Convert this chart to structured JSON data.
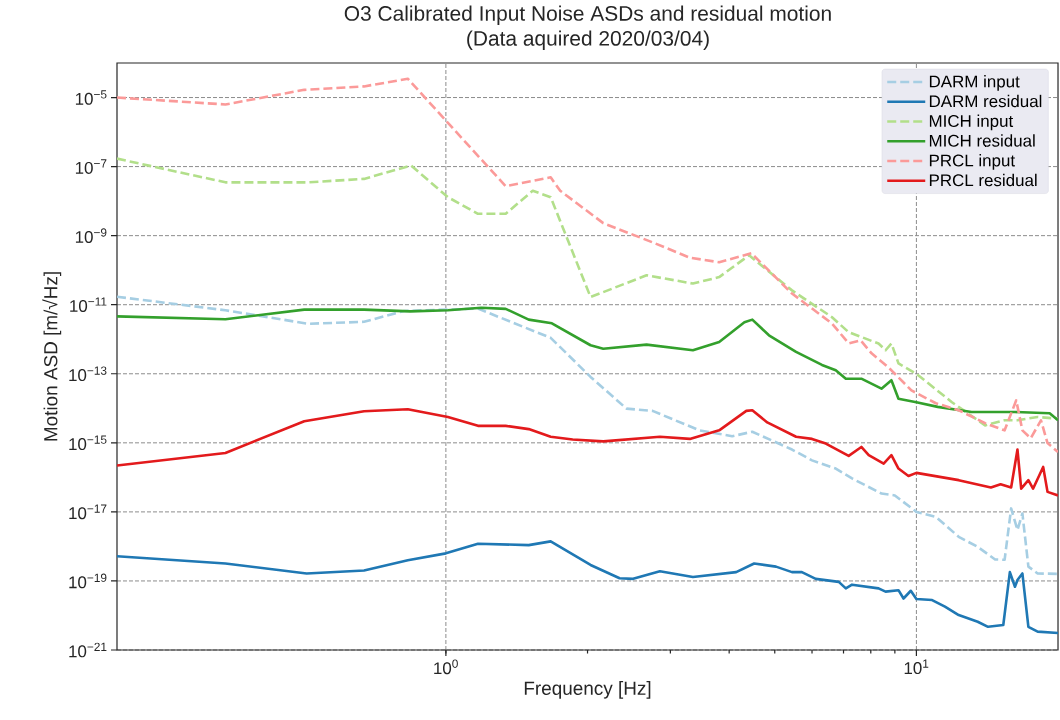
{
  "chart_data": {
    "type": "line",
    "title": "O3 Calibrated Input Noise ASDs and residual motion",
    "subtitle": "(Data aquired 2020/03/04)",
    "xlabel": "Frequency [Hz]",
    "ylabel": "Motion ASD [m/√Hz]",
    "log": "xy",
    "grid": true,
    "legend": "top right",
    "xlim": [
      0.2,
      20
    ],
    "ylim": [
      1e-21,
      0.0001
    ],
    "xticks": [
      {
        "value": 1,
        "label": "10$^{0}$"
      },
      {
        "value": 10,
        "label": "10$^{1}$"
      }
    ],
    "yticks": [
      {
        "value": 1e-21,
        "label": "10$^{−21}$"
      },
      {
        "value": 1e-19,
        "label": "10$^{−19}$"
      },
      {
        "value": 1e-17,
        "label": "10$^{−17}$"
      },
      {
        "value": 1e-15,
        "label": "10$^{−15}$"
      },
      {
        "value": 1e-13,
        "label": "10$^{−13}$"
      },
      {
        "value": 1e-11,
        "label": "10$^{−11}$"
      },
      {
        "value": 1e-09,
        "label": "10$^{−9}$"
      },
      {
        "value": 1e-07,
        "label": "10$^{−7}$"
      },
      {
        "value": 1e-05,
        "label": "10$^{−5}$"
      }
    ],
    "series": [
      {
        "name": "DARM input",
        "color": "#a6cee3",
        "line_style": "dashed",
        "x": [
          0.2,
          0.34,
          0.51,
          0.67,
          0.815,
          1.17,
          1.67,
          2.03,
          2.42,
          2.75,
          3.46,
          4.06,
          4.48,
          5.44,
          6.0,
          6.74,
          7.3,
          8.43,
          9.0,
          10,
          11.0,
          12.3,
          13.5,
          14.7,
          15.4,
          15.9,
          16.4,
          16.8,
          17.3,
          18.1,
          20
        ],
        "values": [
          1.7e-11,
          6.9e-12,
          2.8e-12,
          3.2e-12,
          6.6e-12,
          7.7e-12,
          1.1e-12,
          8.1e-14,
          9.8e-15,
          8.4e-15,
          2.3e-15,
          1.55e-15,
          2.1e-15,
          6.4e-16,
          3.1e-16,
          1.8e-16,
          9.3e-17,
          3.4e-17,
          3e-17,
          1e-17,
          7.2e-18,
          1.9e-18,
          9.7e-19,
          4.2e-19,
          4.1e-19,
          1.26e-17,
          3e-18,
          9e-18,
          2.6e-19,
          1.65e-19,
          1.6e-19
        ]
      },
      {
        "name": "DARM residual",
        "color": "#1f78b4",
        "line_style": "solid",
        "x": [
          0.2,
          0.34,
          0.506,
          0.67,
          0.83,
          1.0,
          1.17,
          1.5,
          1.67,
          2.03,
          2.34,
          2.5,
          2.85,
          3.35,
          4.14,
          4.52,
          5.03,
          5.44,
          5.71,
          6.11,
          6.84,
          7.08,
          7.3,
          8.31,
          8.6,
          9.16,
          9.39,
          9.73,
          10,
          10.8,
          11.5,
          12.3,
          13.5,
          14.2,
          15.3,
          15.8,
          16.2,
          16.4,
          16.8,
          17.3,
          18.1,
          20
        ],
        "values": [
          5.2e-19,
          3.2e-19,
          1.65e-19,
          2e-19,
          4e-19,
          6.3e-19,
          1.2e-18,
          1.09e-18,
          1.4e-18,
          2.9e-19,
          1.2e-19,
          1.15e-19,
          1.9e-19,
          1.3e-19,
          1.8e-19,
          3.2e-19,
          2.6e-19,
          1.8e-19,
          1.8e-19,
          1.15e-19,
          9.4e-20,
          6.1e-20,
          7.8e-20,
          6.1e-20,
          4.9e-20,
          5.4e-20,
          3.1e-20,
          5.2e-20,
          3e-20,
          2.8e-20,
          1.8e-20,
          1.03e-20,
          6.6e-21,
          4.7e-21,
          5.3e-21,
          1.8e-19,
          6.8e-20,
          1.06e-19,
          1.65e-19,
          4.7e-21,
          3.4e-21,
          3.1e-21
        ]
      },
      {
        "name": "MICH input",
        "color": "#b2df8a",
        "line_style": "dashed",
        "x": [
          0.2,
          0.34,
          0.51,
          0.67,
          0.843,
          1.01,
          1.17,
          1.34,
          1.53,
          1.67,
          2.03,
          2.67,
          3.35,
          3.81,
          4.41,
          5.44,
          6.61,
          7.18,
          8.31,
          8.6,
          8.85,
          9.16,
          10,
          11.9,
          14.0,
          15.4,
          16.4,
          18.1,
          20
        ],
        "values": [
          1.7e-07,
          3.5e-08,
          3.5e-08,
          4.4e-08,
          1.08e-07,
          1.3e-08,
          4.3e-09,
          4.3e-09,
          2e-08,
          1.3e-08,
          1.67e-11,
          7.1e-11,
          4.1e-11,
          6.3e-11,
          2.7e-10,
          2.6e-11,
          4.4e-12,
          1.6e-12,
          7.5e-13,
          4.8e-13,
          7.5e-13,
          2e-13,
          1e-13,
          1.5e-14,
          3.2e-15,
          4.5e-15,
          4.5e-15,
          5.6e-15,
          5e-15
        ]
      },
      {
        "name": "MICH residual",
        "color": "#33a02c",
        "line_style": "solid",
        "x": [
          0.2,
          0.34,
          0.5,
          0.67,
          0.84,
          1.01,
          1.19,
          1.34,
          1.5,
          1.68,
          2.03,
          2.16,
          2.67,
          3.35,
          3.81,
          4.31,
          4.48,
          4.86,
          5.55,
          6.3,
          6.74,
          7.08,
          7.64,
          8.43,
          8.85,
          9.16,
          10,
          11.1,
          13.1,
          16.2,
          19.2,
          20
        ],
        "values": [
          4.6e-12,
          3.8e-12,
          7.2e-12,
          7.2e-12,
          6.4e-12,
          6.9e-12,
          8.2e-12,
          7.6e-12,
          3.7e-12,
          2.9e-12,
          6.7e-13,
          5.3e-13,
          7e-13,
          4.8e-13,
          8.3e-13,
          3.1e-12,
          3.7e-12,
          1.3e-12,
          4.3e-13,
          1.8e-13,
          1.26e-13,
          7.2e-14,
          7.2e-14,
          3.7e-14,
          6.5e-14,
          1.9e-14,
          1.5e-14,
          1.1e-14,
          7.8e-15,
          7.8e-15,
          7.2e-15,
          4.5e-15
        ]
      },
      {
        "name": "PRCL input",
        "color": "#fb9a99",
        "line_style": "dashed",
        "x": [
          0.2,
          0.34,
          0.5,
          0.67,
          0.83,
          1.34,
          1.67,
          1.75,
          2.16,
          2.75,
          3.3,
          3.81,
          4.46,
          5.44,
          6.61,
          7.18,
          7.61,
          8.03,
          8.6,
          8.85,
          9.76,
          11.0,
          12.3,
          14.0,
          15.4,
          16.3,
          16.8,
          17.5,
          18.4,
          19.0,
          20
        ],
        "values": [
          1e-05,
          6.3e-06,
          1.67e-05,
          2.1e-05,
          3.5e-05,
          2.7e-08,
          4.9e-08,
          2e-08,
          2.3e-09,
          6.4e-10,
          2.3e-10,
          1.7e-10,
          3.1e-10,
          2.1e-11,
          2.9e-12,
          7.6e-13,
          9.3e-13,
          3.9e-13,
          1.8e-13,
          1.26e-13,
          3.3e-14,
          1.4e-14,
          8.8e-15,
          3.7e-15,
          2.3e-15,
          1.7e-14,
          2.3e-15,
          1.36e-15,
          4.5e-15,
          9.8e-16,
          5.4e-16
        ]
      },
      {
        "name": "PRCL residual",
        "color": "#e31a1c",
        "line_style": "solid",
        "x": [
          0.2,
          0.34,
          0.5,
          0.67,
          0.83,
          1.01,
          1.17,
          1.34,
          1.5,
          1.67,
          1.86,
          2.16,
          2.85,
          3.3,
          3.81,
          4.35,
          4.48,
          4.82,
          5.55,
          6.0,
          6.42,
          7.18,
          7.64,
          7.92,
          8.52,
          8.85,
          9.16,
          9.62,
          10,
          12.3,
          14.4,
          15.1,
          15.9,
          16.4,
          16.7,
          17.3,
          17.7,
          18.6,
          19.0,
          20
        ],
        "values": [
          2.2e-16,
          5.1e-16,
          4.2e-15,
          8.2e-15,
          9.4e-15,
          5.6e-15,
          3.1e-15,
          3.1e-15,
          2.5e-15,
          1.5e-15,
          1.25e-15,
          1.1e-15,
          1.5e-15,
          1.3e-15,
          2.3e-15,
          8.4e-15,
          8.8e-15,
          3.9e-15,
          1.5e-15,
          1.3e-15,
          9.5e-16,
          4.2e-16,
          7.6e-16,
          4.4e-16,
          2.5e-16,
          4.4e-16,
          1.8e-16,
          1.1e-16,
          1.35e-16,
          8.3e-17,
          5.1e-17,
          6.3e-17,
          5.1e-17,
          6.4e-16,
          4.7e-17,
          8.3e-17,
          4.7e-17,
          2e-16,
          3.8e-17,
          3e-17
        ]
      }
    ]
  }
}
